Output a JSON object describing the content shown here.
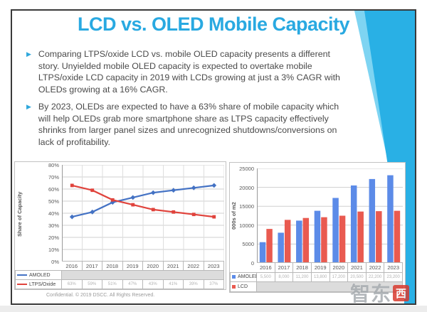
{
  "page": {
    "title": "LCD vs. OLED Mobile Capacity",
    "title_color": "#29A9E1",
    "accent_color": "#29B0E5",
    "bullets": [
      "Comparing LTPS/oxide LCD vs. mobile OLED capacity presents a different story. Unyielded mobile OLED capacity is expected to overtake mobile LTPS/oxide LCD capacity in 2019 with LCDs growing at just a 3% CAGR with OLEDs growing at a 16% CAGR.",
      "By 2023, OLEDs are expected to have a 63% share of mobile capacity which will help OLEDs grab more smartphone share as LTPS capacity effectively shrinks from larger panel sizes and unrecognized shutdowns/conversions on lack of profitability."
    ],
    "footer": "Confidential. © 2019 DSCC. All Rights Reserved.",
    "watermark": {
      "text_gray": "智东",
      "text_boxed": "西",
      "box_color": "#D93A2F"
    }
  },
  "chart_data": [
    {
      "type": "line",
      "title": "",
      "ylabel": "Share of Capacity",
      "categories": [
        "2016",
        "2017",
        "2018",
        "2019",
        "2020",
        "2021",
        "2022",
        "2023"
      ],
      "series": [
        {
          "name": "AMOLED",
          "color": "#4472C4",
          "marker": "diamond",
          "values": [
            37,
            41,
            49,
            53,
            57,
            59,
            61,
            63
          ],
          "table_hidden": true
        },
        {
          "name": "LTPS/Oxide",
          "color": "#E0433C",
          "marker": "square",
          "values": [
            63,
            59,
            51,
            47,
            43,
            41,
            39,
            37
          ],
          "table_hidden": false
        }
      ],
      "ylim": [
        0,
        80
      ],
      "ytick_step": 10,
      "ytick_suffix": "%",
      "grid": true,
      "legend_position": "table-left"
    },
    {
      "type": "bar",
      "title": "",
      "ylabel": "000s of m2",
      "categories": [
        "2016",
        "2017",
        "2018",
        "2019",
        "2020",
        "2021",
        "2022",
        "2023"
      ],
      "series": [
        {
          "name": "AMOLED",
          "color": "#5C8BE8",
          "values": [
            5500,
            8000,
            11200,
            13800,
            17200,
            20500,
            22200,
            23200
          ],
          "table_hidden": false
        },
        {
          "name": "LCD",
          "color": "#E95A50",
          "values": [
            9000,
            11400,
            11900,
            12100,
            12500,
            13600,
            13700,
            13800
          ],
          "table_hidden": true
        }
      ],
      "ylim": [
        0,
        25000
      ],
      "ytick_step": 5000,
      "ytick_suffix": "",
      "grid": true,
      "legend_position": "table-left"
    }
  ]
}
